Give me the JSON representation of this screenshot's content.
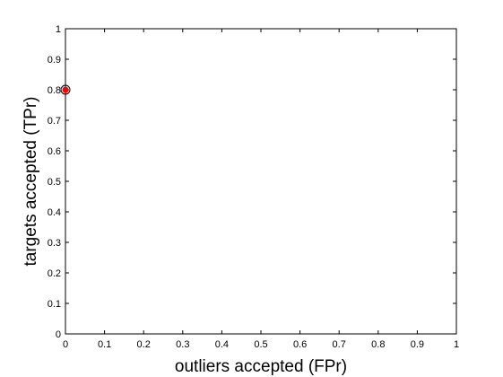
{
  "chart_data": {
    "type": "scatter",
    "title": "",
    "xlabel": "outliers accepted (FPr)",
    "ylabel": "targets accepted (TPr)",
    "xlim": [
      0,
      1
    ],
    "ylim": [
      0,
      1
    ],
    "xticks": [
      "0",
      "0.1",
      "0.2",
      "0.3",
      "0.4",
      "0.5",
      "0.6",
      "0.7",
      "0.8",
      "0.9",
      "1"
    ],
    "yticks": [
      "0",
      "0.1",
      "0.2",
      "0.3",
      "0.4",
      "0.5",
      "0.6",
      "0.7",
      "0.8",
      "0.9",
      "1"
    ],
    "grid": false,
    "series": [
      {
        "x": [
          0
        ],
        "y": [
          0.8
        ],
        "marker": "circle",
        "color": "#ff0000",
        "edge_color": "#000000"
      }
    ]
  }
}
